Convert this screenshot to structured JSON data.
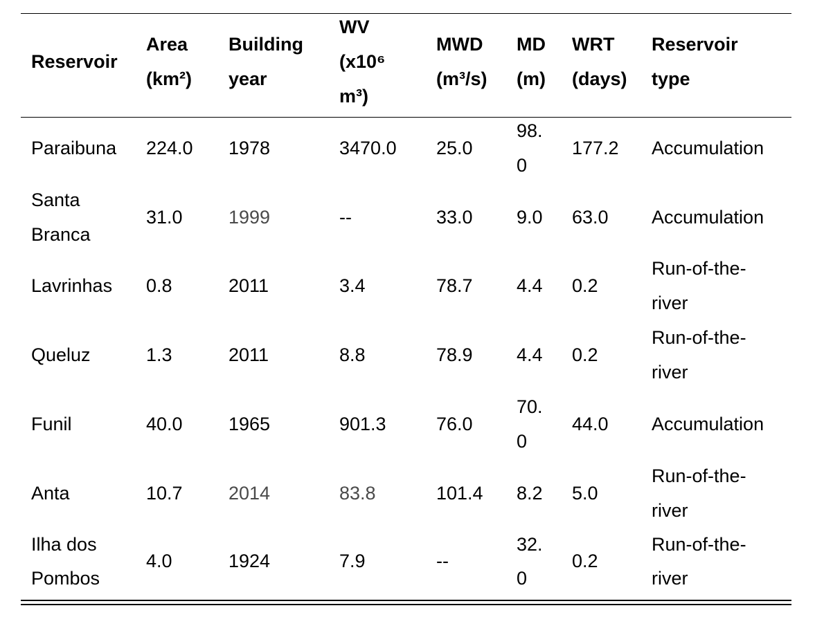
{
  "table": {
    "headers": {
      "reservoir": [
        "Reservoir"
      ],
      "area": [
        "Area",
        "(km²)"
      ],
      "building_year": [
        "Building",
        "year"
      ],
      "wv": [
        "WV",
        "(x10⁶",
        "m³)"
      ],
      "mwd": [
        "MWD",
        "(m³/s)"
      ],
      "md": [
        "MD",
        "(m)"
      ],
      "wrt": [
        "WRT",
        "(days)"
      ],
      "reservoir_type": [
        "Reservoir",
        "type"
      ]
    },
    "rows": [
      {
        "name": [
          "Paraibuna"
        ],
        "area": "224.0",
        "year": "1978",
        "wv": "3470.0",
        "mwd": "25.0",
        "md": [
          "98.",
          "0"
        ],
        "wrt": "177.2",
        "type": [
          "Accumulation"
        ]
      },
      {
        "name": [
          "Santa",
          "Branca"
        ],
        "area": "31.0",
        "year": "1999",
        "wv": "--",
        "mwd": "33.0",
        "md": [
          "9.0"
        ],
        "wrt": "63.0",
        "type": [
          "Accumulation"
        ]
      },
      {
        "name": [
          "Lavrinhas"
        ],
        "area": "0.8",
        "year": "2011",
        "wv": "3.4",
        "mwd": "78.7",
        "md": [
          "4.4"
        ],
        "wrt": "0.2",
        "type": [
          "Run-of-the-",
          "river"
        ]
      },
      {
        "name": [
          "Queluz"
        ],
        "area": "1.3",
        "year": "2011",
        "wv": "8.8",
        "mwd": "78.9",
        "md": [
          "4.4"
        ],
        "wrt": "0.2",
        "type": [
          "Run-of-the-",
          "river"
        ]
      },
      {
        "name": [
          "Funil"
        ],
        "area": "40.0",
        "year": "1965",
        "wv": "901.3",
        "mwd": "76.0",
        "md": [
          "70.",
          "0"
        ],
        "wrt": "44.0",
        "type": [
          "Accumulation"
        ]
      },
      {
        "name": [
          "Anta"
        ],
        "area": "10.7",
        "year": "2014",
        "wv": "83.8",
        "mwd": "101.4",
        "md": [
          "8.2"
        ],
        "wrt": "5.0",
        "type": [
          "Run-of-the-",
          "river"
        ]
      },
      {
        "name": [
          "Ilha dos",
          "Pombos"
        ],
        "area": "4.0",
        "year": "1924",
        "wv": "7.9",
        "mwd": "--",
        "md": [
          "32.",
          "0"
        ],
        "wrt": "0.2",
        "type": [
          "Run-of-the-",
          "river"
        ]
      }
    ]
  }
}
